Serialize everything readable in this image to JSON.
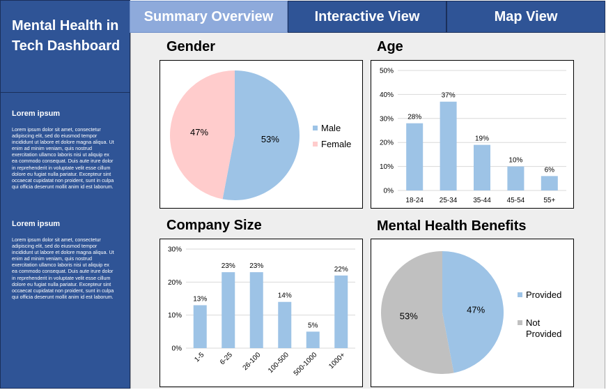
{
  "sidebar": {
    "title": "Mental Health in Tech Dashboard",
    "sections": [
      {
        "heading": "Lorem ipsum",
        "body": "Lorem ipsum dolor sit amet, consectetur adipiscing elit, sed do eiusmod tempor incididunt ut labore et dolore magna aliqua. Ut enim ad minim veniam, quis nostrud exercitation ullamco laboris nisi ut aliquip ex ea commodo consequat. Duis aute irure dolor in reprehenderit in voluptate velit esse cillum dolore eu fugiat nulla pariatur. Excepteur sint occaecat cupidatat non proident, sunt in culpa qui officia deserunt mollit anim id est laborum."
      },
      {
        "heading": "Lorem ipsum",
        "body": "Lorem ipsum dolor sit amet, consectetur adipiscing elit, sed do eiusmod tempor incididunt ut labore et dolore magna aliqua. Ut enim ad minim veniam, quis nostrud exercitation ullamco laboris nisi ut aliquip ex ea commodo consequat. Duis aute irure dolor in reprehenderit in voluptate velit esse cillum dolore eu fugiat nulla pariatur. Excepteur sint occaecat cupidatat non proident, sunt in culpa qui officia deserunt mollit anim id est laborum."
      }
    ]
  },
  "tabs": [
    {
      "label": "Summary Overview",
      "active": true
    },
    {
      "label": "Interactive View",
      "active": false
    },
    {
      "label": "Map View",
      "active": false
    }
  ],
  "colors": {
    "sidebar_bg": "#2f5496",
    "tab_active": "#8eaadb",
    "male": "#9dc3e6",
    "female": "#ffcccc",
    "bar": "#9dc3e6",
    "not_provided": "#c0c0c0"
  },
  "panels": {
    "gender_title": "Gender",
    "age_title": "Age",
    "company_title": "Company Size",
    "benefits_title": "Mental Health Benefits"
  },
  "chart_data": [
    {
      "id": "gender",
      "type": "pie",
      "title": "Gender",
      "labels": [
        "Male",
        "Female"
      ],
      "values": [
        53,
        47
      ],
      "data_labels": [
        "53%",
        "47%"
      ]
    },
    {
      "id": "age",
      "type": "bar",
      "title": "Age",
      "categories": [
        "18-24",
        "25-34",
        "35-44",
        "45-54",
        "55+"
      ],
      "values": [
        28,
        37,
        19,
        10,
        6
      ],
      "data_labels": [
        "28%",
        "37%",
        "19%",
        "10%",
        "6%"
      ],
      "ylim": [
        0,
        50
      ],
      "yticks": [
        "0%",
        "10%",
        "20%",
        "30%",
        "40%",
        "50%"
      ]
    },
    {
      "id": "company",
      "type": "bar",
      "title": "Company Size",
      "categories": [
        "1-5",
        "6-25",
        "26-100",
        "100-500",
        "500-1000",
        "1000+"
      ],
      "values": [
        13,
        23,
        23,
        14,
        5,
        22
      ],
      "data_labels": [
        "13%",
        "23%",
        "23%",
        "14%",
        "5%",
        "22%"
      ],
      "ylim": [
        0,
        30
      ],
      "yticks": [
        "0%",
        "10%",
        "20%",
        "30%"
      ]
    },
    {
      "id": "benefits",
      "type": "pie",
      "title": "Mental Health Benefits",
      "labels": [
        "Provided",
        "Not Provided"
      ],
      "values": [
        47,
        53
      ],
      "data_labels": [
        "47%",
        "53%"
      ]
    }
  ]
}
